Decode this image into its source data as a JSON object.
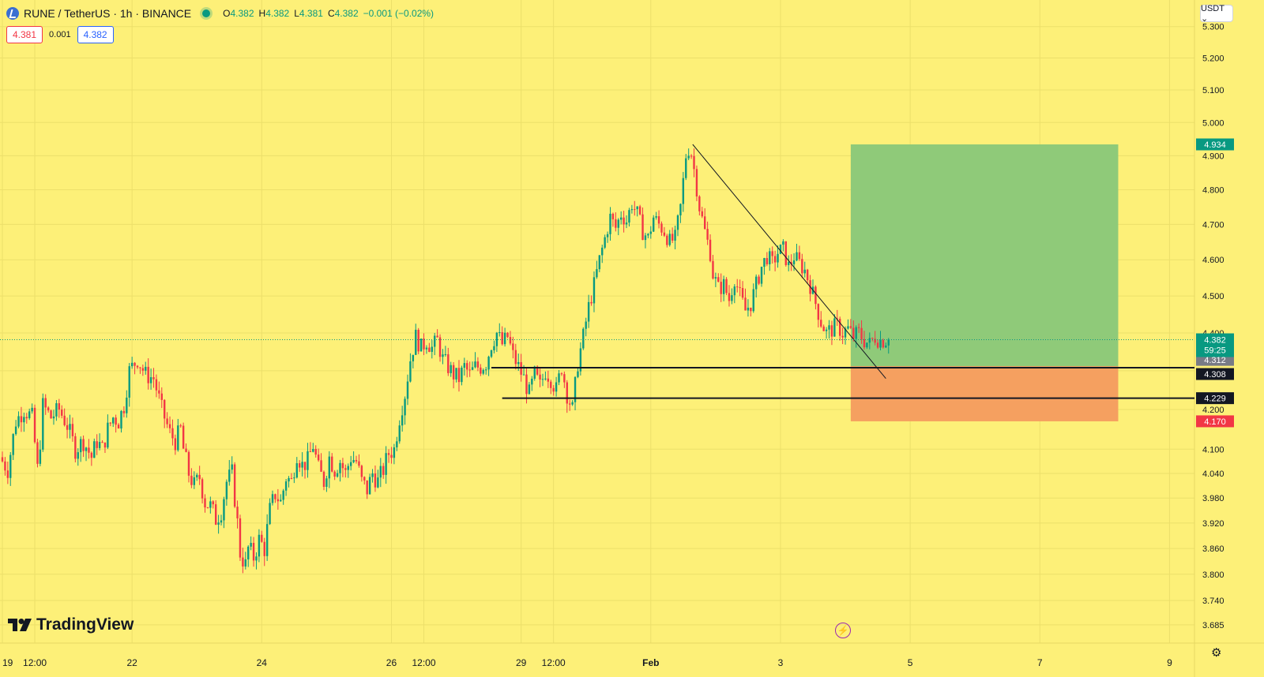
{
  "header": {
    "symbol": "RUNE / TetherUS · 1h · BINANCE",
    "ohlc": [
      {
        "k": "O",
        "v": "4.382"
      },
      {
        "k": "H",
        "v": "4.382"
      },
      {
        "k": "L",
        "v": "4.381"
      },
      {
        "k": "C",
        "v": "4.382"
      }
    ],
    "change": "−0.001 (−0.02%)",
    "sell_price": "4.381",
    "spread": "0.001",
    "buy_price": "4.382"
  },
  "currency_button": "USDT ⌄",
  "brand": "TradingView",
  "icons": {
    "logo": "rune-logo-icon",
    "live": "market-open-dot-icon",
    "bolt": "lightning-icon",
    "settings": "gear-icon"
  },
  "colors": {
    "background": "#fdf078",
    "up": "#089981",
    "down": "#f23645",
    "target_zone": "#8fca79",
    "stop_zone": "#f5a060"
  },
  "chart_data": {
    "type": "candlestick",
    "x_ticks": [
      {
        "label": "19",
        "x": 0
      },
      {
        "label": "12:00",
        "x": 12
      },
      {
        "label": "22",
        "x": 48
      },
      {
        "label": "24",
        "x": 96
      },
      {
        "label": "26",
        "x": 144
      },
      {
        "label": "12:00",
        "x": 156
      },
      {
        "label": "29",
        "x": 192
      },
      {
        "label": "12:00",
        "x": 204
      },
      {
        "label": "Feb",
        "x": 240
      },
      {
        "label": "3",
        "x": 288
      },
      {
        "label": "5",
        "x": 336
      },
      {
        "label": "7",
        "x": 384
      },
      {
        "label": "9",
        "x": 432
      }
    ],
    "y_ticks": [
      "3.685",
      "3.740",
      "3.800",
      "3.860",
      "3.920",
      "3.980",
      "4.040",
      "4.100",
      "4.200",
      "4.300",
      "4.400",
      "4.500",
      "4.600",
      "4.700",
      "4.800",
      "4.900",
      "5.000",
      "5.100",
      "5.200",
      "5.300"
    ],
    "y_axis": "log",
    "current_price": "4.382",
    "countdown": "59:25",
    "price_labels": [
      {
        "value": "4.934",
        "role": "target"
      },
      {
        "value": "4.312",
        "role": "entry"
      },
      {
        "value": "4.308",
        "role": "line"
      },
      {
        "value": "4.229",
        "role": "line"
      },
      {
        "value": "4.170",
        "role": "stop"
      }
    ],
    "horizontal_lines": [
      {
        "price": 4.308,
        "from": 181,
        "to": 460
      },
      {
        "price": 4.229,
        "from": 185,
        "to": 460
      }
    ],
    "trendline": {
      "from": {
        "x": 255.5,
        "price": 4.934
      },
      "to": {
        "x": 327,
        "price": 4.28
      }
    },
    "position": {
      "type": "long",
      "from": 314,
      "to": 413,
      "entry": 4.312,
      "target": 4.934,
      "stop": 4.17
    },
    "path": [
      [
        0,
        4.08
      ],
      [
        3,
        4.05
      ],
      [
        6,
        4.17
      ],
      [
        9,
        4.2
      ],
      [
        12,
        4.18
      ],
      [
        14,
        4.05
      ],
      [
        15,
        4.12
      ],
      [
        16,
        4.21
      ],
      [
        19,
        4.18
      ],
      [
        22,
        4.2
      ],
      [
        25,
        4.16
      ],
      [
        28,
        4.1
      ],
      [
        31,
        4.12
      ],
      [
        34,
        4.08
      ],
      [
        36,
        4.12
      ],
      [
        38,
        4.1
      ],
      [
        40,
        4.15
      ],
      [
        42,
        4.18
      ],
      [
        44,
        4.17
      ],
      [
        46,
        4.21
      ],
      [
        48,
        4.3
      ],
      [
        51,
        4.33
      ],
      [
        54,
        4.29
      ],
      [
        57,
        4.28
      ],
      [
        60,
        4.2
      ],
      [
        63,
        4.14
      ],
      [
        65,
        4.12
      ],
      [
        67,
        4.15
      ],
      [
        68,
        4.1
      ],
      [
        70,
        4.04
      ],
      [
        72,
        4.01
      ],
      [
        74,
        4.03
      ],
      [
        76,
        3.97
      ],
      [
        78,
        3.96
      ],
      [
        80,
        3.93
      ],
      [
        82,
        3.95
      ],
      [
        84,
        4.02
      ],
      [
        86,
        4.04
      ],
      [
        88,
        3.92
      ],
      [
        89,
        3.85
      ],
      [
        91,
        3.82
      ],
      [
        92,
        3.86
      ],
      [
        94,
        3.84
      ],
      [
        96,
        3.88
      ],
      [
        98,
        3.86
      ],
      [
        100,
        3.95
      ],
      [
        102,
        3.99
      ],
      [
        104,
        3.97
      ],
      [
        106,
        4.03
      ],
      [
        108,
        4.02
      ],
      [
        110,
        4.09
      ],
      [
        112,
        4.06
      ],
      [
        114,
        4.07
      ],
      [
        116,
        4.11
      ],
      [
        118,
        4.05
      ],
      [
        120,
        4.02
      ],
      [
        122,
        4.08
      ],
      [
        124,
        4.05
      ],
      [
        126,
        4.07
      ],
      [
        128,
        4.04
      ],
      [
        130,
        4.08
      ],
      [
        132,
        4.07
      ],
      [
        134,
        4.02
      ],
      [
        136,
        4.0
      ],
      [
        138,
        4.04
      ],
      [
        140,
        4.02
      ],
      [
        142,
        4.05
      ],
      [
        144,
        4.09
      ],
      [
        146,
        4.1
      ],
      [
        148,
        4.18
      ],
      [
        150,
        4.24
      ],
      [
        152,
        4.33
      ],
      [
        154,
        4.39
      ],
      [
        156,
        4.36
      ],
      [
        158,
        4.38
      ],
      [
        160,
        4.36
      ],
      [
        162,
        4.38
      ],
      [
        164,
        4.33
      ],
      [
        166,
        4.31
      ],
      [
        168,
        4.29
      ],
      [
        170,
        4.28
      ],
      [
        172,
        4.31
      ],
      [
        174,
        4.29
      ],
      [
        176,
        4.31
      ],
      [
        178,
        4.31
      ],
      [
        180,
        4.32
      ],
      [
        182,
        4.37
      ],
      [
        184,
        4.4
      ],
      [
        186,
        4.37
      ],
      [
        188,
        4.39
      ],
      [
        190,
        4.34
      ],
      [
        192,
        4.31
      ],
      [
        194,
        4.28
      ],
      [
        196,
        4.24
      ],
      [
        198,
        4.29
      ],
      [
        200,
        4.26
      ],
      [
        202,
        4.3
      ],
      [
        204,
        4.28
      ],
      [
        206,
        4.25
      ],
      [
        208,
        4.31
      ],
      [
        210,
        4.24
      ],
      [
        212,
        4.2
      ],
      [
        213,
        4.26
      ],
      [
        214,
        4.32
      ],
      [
        216,
        4.39
      ],
      [
        218,
        4.47
      ],
      [
        220,
        4.53
      ],
      [
        222,
        4.6
      ],
      [
        224,
        4.66
      ],
      [
        226,
        4.72
      ],
      [
        228,
        4.69
      ],
      [
        230,
        4.73
      ],
      [
        232,
        4.71
      ],
      [
        234,
        4.76
      ],
      [
        236,
        4.73
      ],
      [
        238,
        4.68
      ],
      [
        240,
        4.66
      ],
      [
        242,
        4.72
      ],
      [
        244,
        4.7
      ],
      [
        246,
        4.68
      ],
      [
        248,
        4.65
      ],
      [
        250,
        4.66
      ],
      [
        252,
        4.75
      ],
      [
        254,
        4.9
      ],
      [
        255.5,
        4.93
      ],
      [
        257,
        4.86
      ],
      [
        259,
        4.75
      ],
      [
        261,
        4.68
      ],
      [
        263,
        4.62
      ],
      [
        264,
        4.56
      ],
      [
        266,
        4.52
      ],
      [
        268,
        4.53
      ],
      [
        270,
        4.49
      ],
      [
        272,
        4.55
      ],
      [
        274,
        4.5
      ],
      [
        276,
        4.46
      ],
      [
        278,
        4.48
      ],
      [
        280,
        4.53
      ],
      [
        282,
        4.58
      ],
      [
        284,
        4.61
      ],
      [
        286,
        4.59
      ],
      [
        288,
        4.62
      ],
      [
        290,
        4.63
      ],
      [
        292,
        4.58
      ],
      [
        294,
        4.61
      ],
      [
        296,
        4.59
      ],
      [
        298,
        4.57
      ],
      [
        300,
        4.53
      ],
      [
        302,
        4.48
      ],
      [
        304,
        4.43
      ],
      [
        306,
        4.4
      ],
      [
        308,
        4.41
      ],
      [
        310,
        4.42
      ],
      [
        312,
        4.4
      ],
      [
        314,
        4.41
      ],
      [
        316,
        4.39
      ],
      [
        318,
        4.4
      ],
      [
        320,
        4.38
      ],
      [
        322,
        4.37
      ],
      [
        324,
        4.39
      ],
      [
        326,
        4.38
      ],
      [
        328,
        4.382
      ]
    ]
  }
}
